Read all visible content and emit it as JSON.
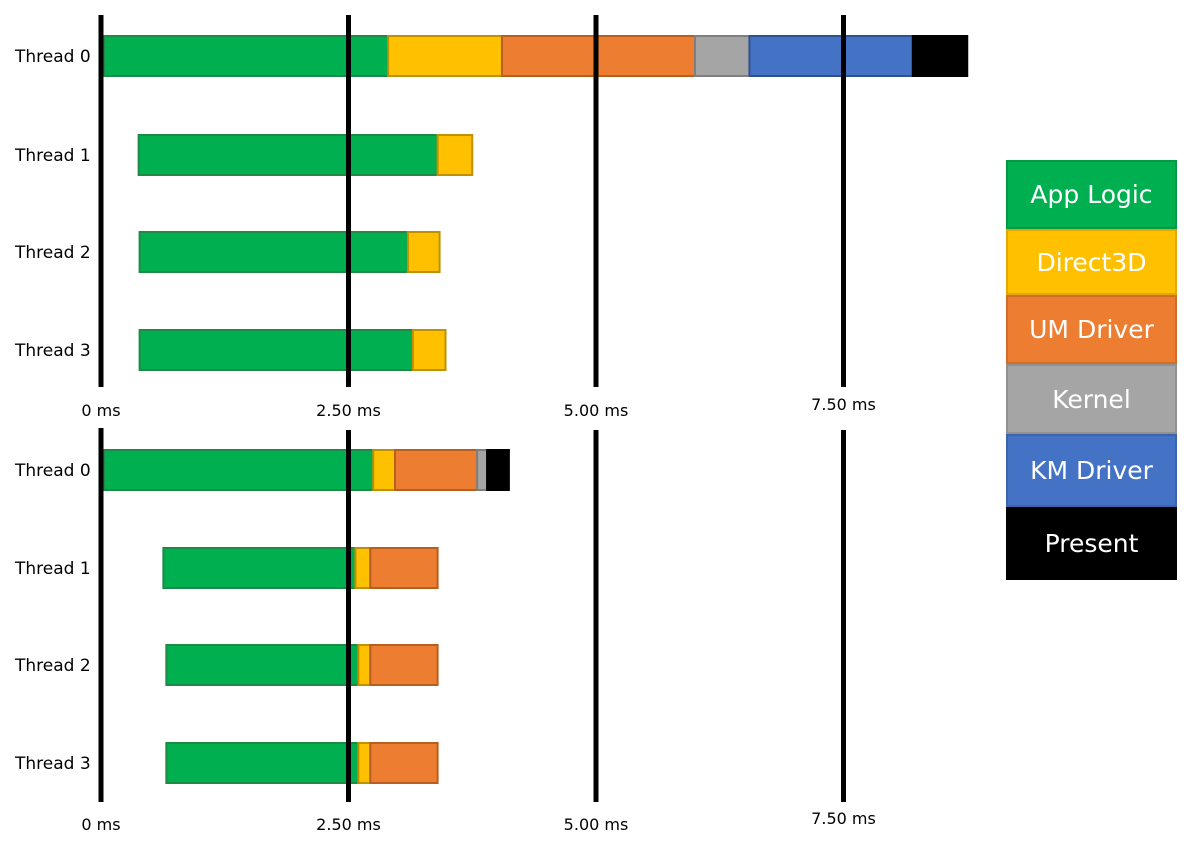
{
  "chart_data": [
    {
      "type": "gantt",
      "x_unit": "ms",
      "x_ticks": [
        "0 ms",
        "2.50 ms",
        "5.00 ms",
        "7.50 ms"
      ],
      "x_tick_values": [
        0,
        2.5,
        5.0,
        7.5
      ],
      "threads": [
        {
          "label": "Thread 0",
          "segments": [
            {
              "category": "App Logic",
              "start": 0.03,
              "end": 2.9
            },
            {
              "category": "Direct3D",
              "start": 2.9,
              "end": 4.05
            },
            {
              "category": "UM Driver",
              "start": 4.05,
              "end": 6.0
            },
            {
              "category": "Kernel",
              "start": 6.0,
              "end": 6.55
            },
            {
              "category": "KM Driver",
              "start": 6.55,
              "end": 8.2
            },
            {
              "category": "Present",
              "start": 8.2,
              "end": 8.75
            }
          ]
        },
        {
          "label": "Thread 1",
          "segments": [
            {
              "category": "App Logic",
              "start": 0.38,
              "end": 3.4
            },
            {
              "category": "Direct3D",
              "start": 3.4,
              "end": 3.75
            }
          ]
        },
        {
          "label": "Thread 2",
          "segments": [
            {
              "category": "App Logic",
              "start": 0.39,
              "end": 3.1
            },
            {
              "category": "Direct3D",
              "start": 3.1,
              "end": 3.42
            }
          ]
        },
        {
          "label": "Thread 3",
          "segments": [
            {
              "category": "App Logic",
              "start": 0.39,
              "end": 3.15
            },
            {
              "category": "Direct3D",
              "start": 3.15,
              "end": 3.48
            }
          ]
        }
      ]
    },
    {
      "type": "gantt",
      "x_unit": "ms",
      "x_ticks": [
        "0 ms",
        "2.50 ms",
        "5.00 ms",
        "7.50 ms"
      ],
      "x_tick_values": [
        0,
        2.5,
        5.0,
        7.5
      ],
      "threads": [
        {
          "label": "Thread 0",
          "segments": [
            {
              "category": "App Logic",
              "start": 0.03,
              "end": 2.75
            },
            {
              "category": "Direct3D",
              "start": 2.75,
              "end": 2.97
            },
            {
              "category": "UM Driver",
              "start": 2.97,
              "end": 3.8
            },
            {
              "category": "Kernel",
              "start": 3.8,
              "end": 3.9
            },
            {
              "category": "Present",
              "start": 3.9,
              "end": 4.12
            }
          ]
        },
        {
          "label": "Thread 1",
          "segments": [
            {
              "category": "App Logic",
              "start": 0.63,
              "end": 2.57
            },
            {
              "category": "Direct3D",
              "start": 2.57,
              "end": 2.72
            },
            {
              "category": "UM Driver",
              "start": 2.72,
              "end": 3.4
            }
          ]
        },
        {
          "label": "Thread 2",
          "segments": [
            {
              "category": "App Logic",
              "start": 0.66,
              "end": 2.6
            },
            {
              "category": "Direct3D",
              "start": 2.6,
              "end": 2.72
            },
            {
              "category": "UM Driver",
              "start": 2.72,
              "end": 3.4
            }
          ]
        },
        {
          "label": "Thread 3",
          "segments": [
            {
              "category": "App Logic",
              "start": 0.66,
              "end": 2.6
            },
            {
              "category": "Direct3D",
              "start": 2.6,
              "end": 2.72
            },
            {
              "category": "UM Driver",
              "start": 2.72,
              "end": 3.4
            }
          ]
        }
      ]
    }
  ],
  "legend": {
    "items": [
      {
        "label": "App Logic",
        "color": "#00b050"
      },
      {
        "label": "Direct3D",
        "color": "#ffc000"
      },
      {
        "label": "UM Driver",
        "color": "#ed7d31"
      },
      {
        "label": "Kernel",
        "color": "#a5a5a5"
      },
      {
        "label": "KM Driver",
        "color": "#4472c4"
      },
      {
        "label": "Present",
        "color": "#000000"
      }
    ]
  },
  "colors": {
    "App Logic": "#00b050",
    "Direct3D": "#ffc000",
    "UM Driver": "#ed7d31",
    "Kernel": "#a5a5a5",
    "KM Driver": "#4472c4",
    "Present": "#000000"
  },
  "border_colors": {
    "App Logic": "#1e8a45",
    "Direct3D": "#bf9000",
    "UM Driver": "#b85f20",
    "Kernel": "#7f7f7f",
    "KM Driver": "#2f528f",
    "Present": "#000000"
  }
}
